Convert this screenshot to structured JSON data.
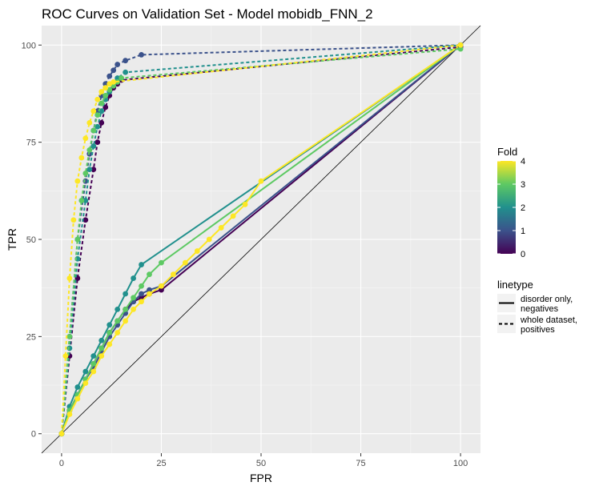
{
  "chart_data": {
    "type": "line",
    "title": "ROC Curves on Validation Set - Model mobidb_FNN_2",
    "xlabel": "FPR",
    "ylabel": "TPR",
    "xlim": [
      -5,
      105
    ],
    "ylim": [
      -5,
      105
    ],
    "x_ticks": [
      0,
      25,
      50,
      75,
      100
    ],
    "y_ticks": [
      0,
      25,
      50,
      75,
      100
    ],
    "x_tick_labels": [
      "0",
      "25",
      "50",
      "75",
      "100"
    ],
    "y_tick_labels": [
      "0",
      "25",
      "50",
      "75",
      "100"
    ],
    "grid": true,
    "reference_line": "diagonal",
    "legend": {
      "placement": "right",
      "color_title": "Fold",
      "color_ticks": [
        "0",
        "1",
        "2",
        "3",
        "4"
      ],
      "linetype_title": "linetype",
      "linetype_entries": [
        {
          "style": "solid",
          "label_lines": [
            "disorder only,",
            "negatives"
          ]
        },
        {
          "style": "dashed",
          "label_lines": [
            "whole dataset,",
            "positives"
          ]
        }
      ]
    },
    "colors": [
      "#440154",
      "#3b528b",
      "#21908d",
      "#5dc963",
      "#fde725"
    ],
    "series": [
      {
        "fold": 0,
        "linetype": "solid",
        "x": [
          0,
          2,
          4,
          6,
          8,
          10,
          12,
          14,
          16,
          18,
          20,
          22,
          25,
          100
        ],
        "y": [
          0,
          6,
          10,
          14,
          18,
          22,
          26,
          29,
          32,
          34,
          35,
          36,
          37,
          100
        ]
      },
      {
        "fold": 1,
        "linetype": "solid",
        "x": [
          0,
          2,
          4,
          6,
          8,
          10,
          12,
          14,
          16,
          18,
          20,
          22,
          25,
          100
        ],
        "y": [
          0,
          6,
          10,
          14,
          17,
          21,
          25,
          28,
          31,
          34,
          36,
          37,
          38,
          100
        ]
      },
      {
        "fold": 2,
        "linetype": "solid",
        "x": [
          0,
          2,
          4,
          6,
          8,
          10,
          12,
          14,
          16,
          18,
          20,
          100
        ],
        "y": [
          0,
          7,
          12,
          16,
          20,
          24,
          28,
          32,
          36,
          40,
          43.5,
          100
        ]
      },
      {
        "fold": 3,
        "linetype": "solid",
        "x": [
          0,
          2,
          4,
          6,
          8,
          10,
          12,
          14,
          16,
          18,
          20,
          22,
          25,
          100
        ],
        "y": [
          0,
          6,
          10,
          14,
          18,
          22,
          26,
          29,
          32,
          35,
          38,
          41,
          44,
          100
        ]
      },
      {
        "fold": 4,
        "linetype": "solid",
        "x": [
          0,
          2,
          4,
          6,
          8,
          10,
          12,
          14,
          16,
          18,
          20,
          22,
          25,
          28,
          31,
          34,
          37,
          40,
          43,
          46,
          50,
          100
        ],
        "y": [
          0,
          5,
          9,
          13,
          16,
          20,
          23,
          26,
          29,
          32,
          34,
          36,
          38,
          41,
          44,
          47,
          50,
          53,
          56,
          59,
          65,
          100
        ]
      },
      {
        "fold": 0,
        "linetype": "dashed",
        "x": [
          0,
          2,
          4,
          6,
          8,
          9,
          10,
          11,
          12,
          13,
          14,
          15,
          100
        ],
        "y": [
          0,
          20,
          40,
          55,
          68,
          75,
          80,
          84,
          87,
          89,
          90,
          91,
          99.5
        ]
      },
      {
        "fold": 1,
        "linetype": "dashed",
        "x": [
          0,
          2,
          4,
          6,
          7,
          8,
          9,
          10,
          11,
          12,
          13,
          14,
          16,
          20,
          100
        ],
        "y": [
          0,
          25,
          50,
          65,
          72,
          78,
          83,
          87,
          90,
          92,
          93.5,
          95,
          96,
          97.5,
          100
        ]
      },
      {
        "fold": 2,
        "linetype": "dashed",
        "x": [
          0,
          2,
          4,
          6,
          7,
          8,
          9,
          10,
          11,
          12,
          13,
          14,
          16,
          100
        ],
        "y": [
          0,
          22,
          45,
          60,
          68,
          74,
          79,
          83,
          86,
          88,
          90,
          91.5,
          93,
          100
        ]
      },
      {
        "fold": 3,
        "linetype": "dashed",
        "x": [
          0,
          2,
          4,
          5,
          6,
          7,
          8,
          9,
          10,
          11,
          12,
          13,
          14,
          15,
          100
        ],
        "y": [
          0,
          25,
          50,
          60,
          67,
          73,
          78,
          82,
          85,
          87,
          88.5,
          89.5,
          90.5,
          91.5,
          99
        ]
      },
      {
        "fold": 4,
        "linetype": "dashed",
        "x": [
          0,
          1,
          2,
          3,
          4,
          5,
          6,
          7,
          8,
          9,
          10,
          11,
          12,
          13,
          100
        ],
        "y": [
          0,
          20,
          40,
          55,
          65,
          71,
          76,
          80,
          83,
          86,
          88,
          89,
          90,
          90.5,
          100
        ]
      }
    ]
  }
}
